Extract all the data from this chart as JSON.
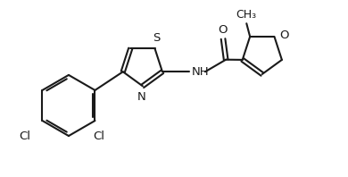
{
  "bg_color": "#ffffff",
  "line_color": "#1a1a1a",
  "line_width": 1.5,
  "font_size": 9.5,
  "fig_width": 3.9,
  "fig_height": 1.98,
  "dpi": 100,
  "xlim": [
    0,
    10
  ],
  "ylim": [
    0,
    5.08
  ]
}
